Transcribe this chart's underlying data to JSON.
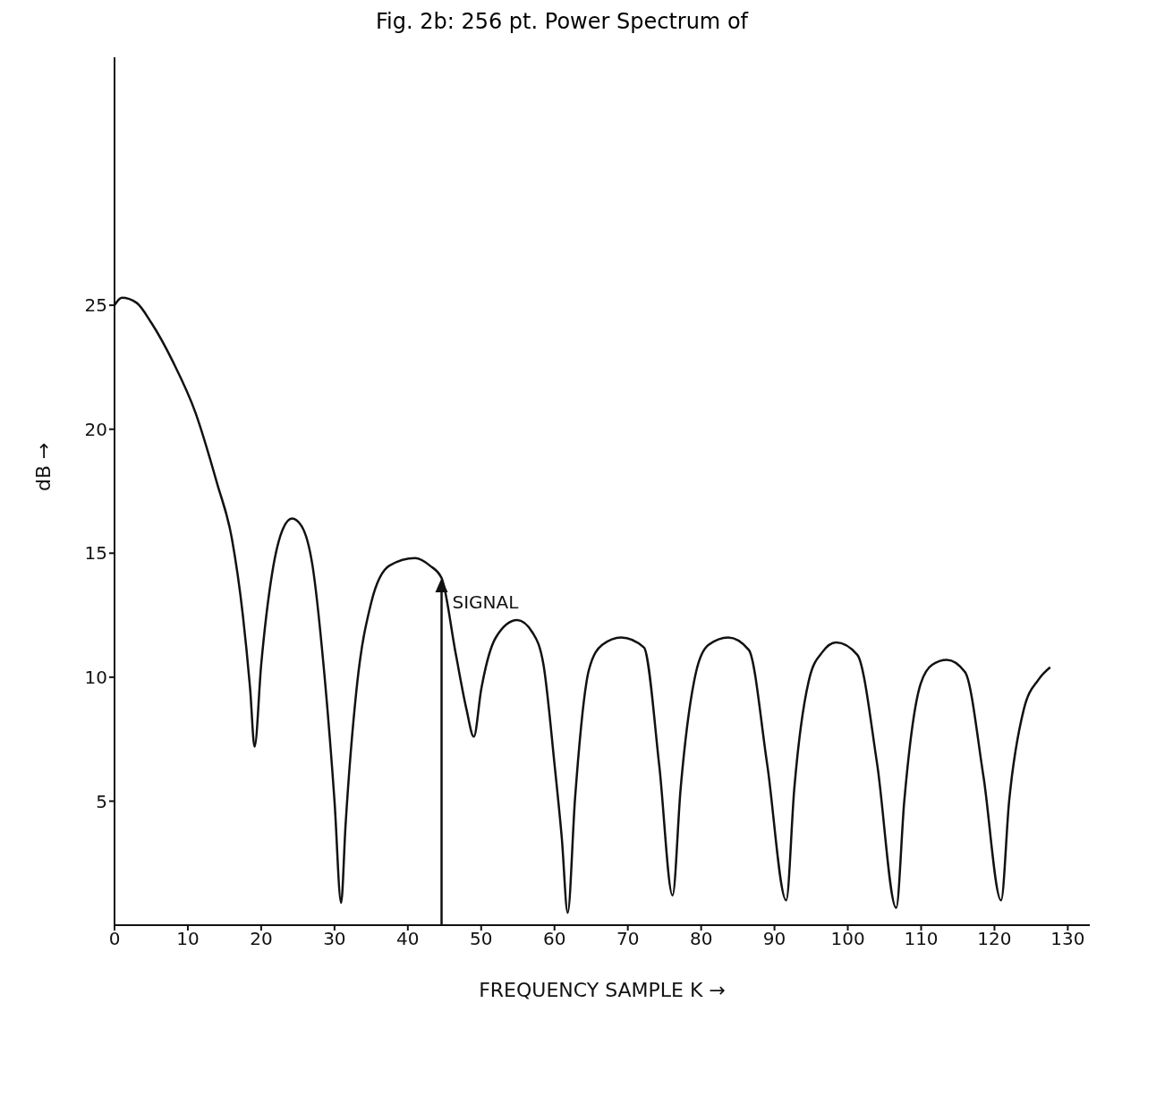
{
  "chart_data": {
    "type": "line",
    "title": "Fig. 2b:  256 pt. Power Spectrum of",
    "xlabel": "FREQUENCY SAMPLE K →",
    "ylabel": "dB →",
    "x": [
      0,
      1,
      3,
      5,
      8,
      11,
      14,
      16,
      17.5,
      18.5,
      19.1,
      20,
      21.5,
      23,
      24.2,
      25.5,
      27,
      28.5,
      30,
      30.9,
      31.5,
      33,
      35,
      37.5,
      41,
      43,
      44.6,
      46.5,
      48,
      49,
      50,
      52,
      54.9,
      57,
      58.5,
      60,
      61,
      61.8,
      62.8,
      64.7,
      66.5,
      69.1,
      72.2,
      74.3,
      76.1,
      77.2,
      79.3,
      81,
      83.7,
      86.5,
      89,
      91.6,
      92.7,
      94.8,
      96.5,
      98.4,
      101.3,
      104,
      106.6,
      107.7,
      109.8,
      111.5,
      113.5,
      116,
      118.5,
      120.9,
      122,
      124,
      126,
      127.6
    ],
    "series": [
      {
        "color": "#111111",
        "values": [
          25.0,
          25.3,
          25.1,
          24.3,
          22.7,
          20.7,
          17.8,
          15.6,
          12.5,
          9.5,
          7.2,
          10.5,
          14.2,
          16.0,
          16.4,
          16.1,
          14.5,
          10.5,
          5.0,
          0.9,
          4.0,
          9.5,
          13.0,
          14.5,
          14.8,
          14.5,
          14.0,
          11.0,
          8.7,
          7.6,
          9.5,
          11.6,
          12.3,
          11.8,
          10.5,
          6.5,
          3.5,
          0.5,
          5.1,
          10.3,
          11.3,
          11.6,
          11.2,
          6.4,
          1.2,
          5.5,
          10.2,
          11.3,
          11.6,
          11.1,
          6.5,
          1.0,
          5.5,
          10.0,
          11.0,
          11.4,
          10.9,
          6.5,
          0.7,
          5.0,
          9.6,
          10.5,
          10.7,
          10.2,
          6.0,
          1.0,
          5.0,
          8.7,
          9.9,
          10.4
        ]
      }
    ],
    "annotations": [
      {
        "text": "SIGNAL",
        "x": 44.6,
        "y": 14.0
      }
    ],
    "xlim": [
      0,
      133
    ],
    "xticks": [
      0,
      10,
      20,
      30,
      40,
      50,
      60,
      70,
      80,
      90,
      100,
      110,
      120,
      130
    ],
    "ylim": [
      0,
      35
    ],
    "yticks": [
      5,
      10,
      15,
      20,
      25
    ],
    "grid": false,
    "marker": "none",
    "line_style": "solid"
  }
}
